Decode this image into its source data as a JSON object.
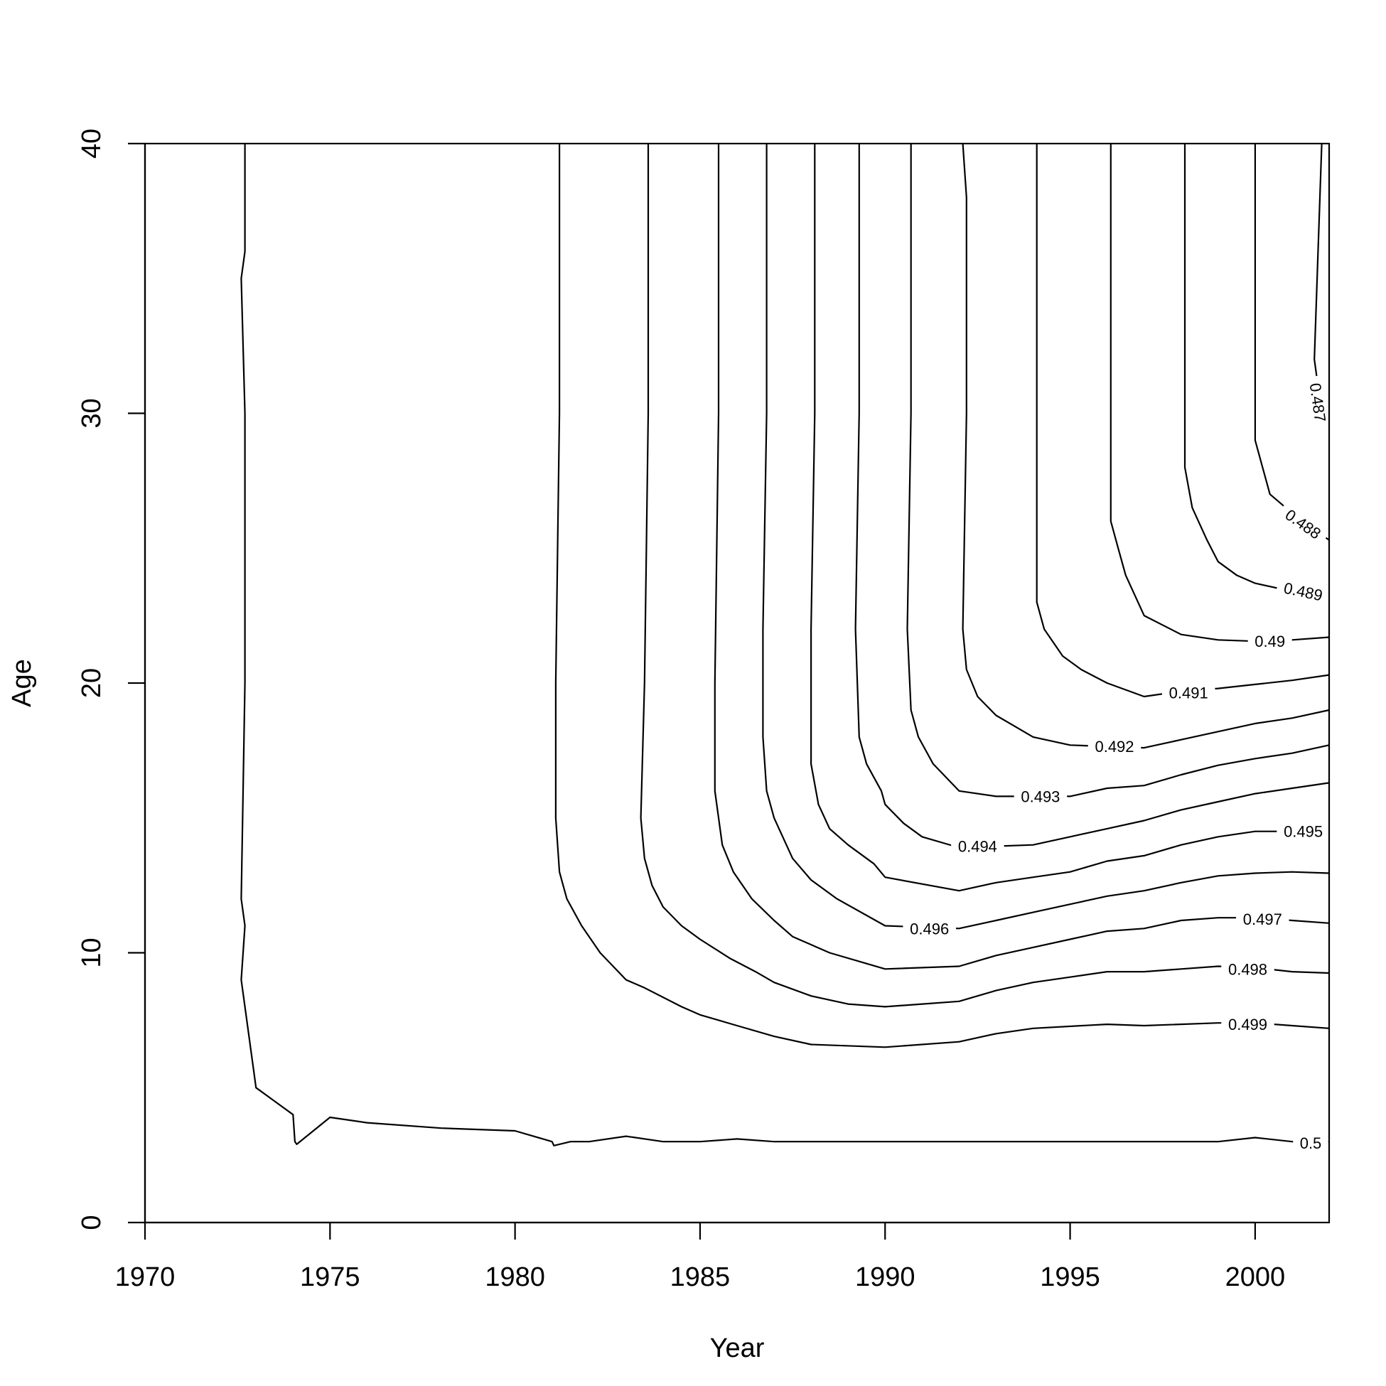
{
  "chart_data": {
    "type": "contour",
    "title": "",
    "xlabel": "Year",
    "ylabel": "Age",
    "xlim": [
      1970,
      2002
    ],
    "ylim": [
      0,
      40
    ],
    "xticks": [
      1970,
      1975,
      1980,
      1985,
      1990,
      1995,
      2000
    ],
    "yticks": [
      0,
      10,
      20,
      30,
      40
    ],
    "grid": false,
    "legend": "none",
    "contours": [
      {
        "level": "0.5",
        "points": [
          [
            1972.7,
            40
          ],
          [
            1972.7,
            36
          ],
          [
            1972.6,
            35
          ],
          [
            1972.7,
            30
          ],
          [
            1972.7,
            20
          ],
          [
            1972.6,
            12
          ],
          [
            1972.7,
            11
          ],
          [
            1972.6,
            9
          ],
          [
            1972.8,
            7
          ],
          [
            1973,
            5
          ],
          [
            1974,
            4
          ],
          [
            1974.05,
            3
          ],
          [
            1974.1,
            2.9
          ],
          [
            1975,
            3.9
          ],
          [
            1976,
            3.7
          ],
          [
            1978,
            3.5
          ],
          [
            1980,
            3.4
          ],
          [
            1981,
            3
          ],
          [
            1981.05,
            2.85
          ],
          [
            1981.5,
            3
          ],
          [
            1982,
            3
          ],
          [
            1983,
            3.2
          ],
          [
            1984,
            3
          ],
          [
            1985,
            3
          ],
          [
            1986,
            3.1
          ],
          [
            1987,
            3
          ],
          [
            1990,
            3
          ],
          [
            1995,
            3
          ],
          [
            1997,
            3
          ],
          [
            1999,
            3
          ],
          [
            2000,
            3.15
          ],
          [
            2001,
            3
          ],
          [
            2002,
            3
          ]
        ]
      },
      {
        "level": "0.499",
        "points": [
          [
            1981.2,
            40
          ],
          [
            1981.2,
            30
          ],
          [
            1981.1,
            20
          ],
          [
            1981.1,
            15
          ],
          [
            1981.2,
            13
          ],
          [
            1981.4,
            12
          ],
          [
            1981.8,
            11
          ],
          [
            1982.3,
            10
          ],
          [
            1983,
            9
          ],
          [
            1983.5,
            8.7
          ],
          [
            1984.5,
            8
          ],
          [
            1985,
            7.7
          ],
          [
            1986,
            7.3
          ],
          [
            1987,
            6.9
          ],
          [
            1988,
            6.6
          ],
          [
            1990,
            6.5
          ],
          [
            1992,
            6.7
          ],
          [
            1993,
            7
          ],
          [
            1994,
            7.2
          ],
          [
            1996,
            7.35
          ],
          [
            1997,
            7.3
          ],
          [
            1999,
            7.4
          ],
          [
            2000,
            7.4
          ],
          [
            2001,
            7.3
          ],
          [
            2002,
            7.2
          ]
        ]
      },
      {
        "level": "0.498",
        "points": [
          [
            1983.6,
            40
          ],
          [
            1983.6,
            30
          ],
          [
            1983.5,
            20
          ],
          [
            1983.4,
            15
          ],
          [
            1983.5,
            13.5
          ],
          [
            1983.7,
            12.5
          ],
          [
            1984,
            11.7
          ],
          [
            1984.5,
            11
          ],
          [
            1985,
            10.5
          ],
          [
            1985.8,
            9.8
          ],
          [
            1986.5,
            9.3
          ],
          [
            1987,
            8.9
          ],
          [
            1988,
            8.4
          ],
          [
            1989,
            8.1
          ],
          [
            1990,
            8
          ],
          [
            1991,
            8.1
          ],
          [
            1992,
            8.2
          ],
          [
            1993,
            8.6
          ],
          [
            1994,
            8.9
          ],
          [
            1995,
            9.1
          ],
          [
            1996,
            9.3
          ],
          [
            1997,
            9.3
          ],
          [
            1998,
            9.4
          ],
          [
            1999,
            9.5
          ],
          [
            2000,
            9.45
          ],
          [
            2001,
            9.3
          ],
          [
            2002,
            9.25
          ]
        ]
      },
      {
        "level": "0.497",
        "points": [
          [
            1985.5,
            40
          ],
          [
            1985.5,
            30
          ],
          [
            1985.4,
            20
          ],
          [
            1985.4,
            16
          ],
          [
            1985.6,
            14
          ],
          [
            1985.9,
            13
          ],
          [
            1986.4,
            12
          ],
          [
            1987,
            11.2
          ],
          [
            1987.5,
            10.6
          ],
          [
            1988.5,
            10
          ],
          [
            1989.5,
            9.6
          ],
          [
            1990,
            9.4
          ],
          [
            1992,
            9.5
          ],
          [
            1993,
            9.9
          ],
          [
            1994,
            10.2
          ],
          [
            1995,
            10.5
          ],
          [
            1996,
            10.8
          ],
          [
            1997,
            10.9
          ],
          [
            1998,
            11.2
          ],
          [
            1999,
            11.3
          ],
          [
            2000,
            11.3
          ],
          [
            2001,
            11.2
          ],
          [
            2002,
            11.1
          ]
        ]
      },
      {
        "level": "0.496",
        "points": [
          [
            1986.8,
            40
          ],
          [
            1986.8,
            30
          ],
          [
            1986.7,
            22
          ],
          [
            1986.7,
            18
          ],
          [
            1986.8,
            16
          ],
          [
            1987,
            15
          ],
          [
            1987.5,
            13.5
          ],
          [
            1988,
            12.7
          ],
          [
            1988.7,
            12
          ],
          [
            1990,
            11
          ],
          [
            1992,
            10.9
          ],
          [
            1993,
            11.2
          ],
          [
            1994,
            11.5
          ],
          [
            1995,
            11.8
          ],
          [
            1996,
            12.1
          ],
          [
            1997,
            12.3
          ],
          [
            1998,
            12.6
          ],
          [
            1999,
            12.85
          ],
          [
            2000,
            12.95
          ],
          [
            2001,
            13
          ],
          [
            2002,
            12.95
          ]
        ]
      },
      {
        "level": "0.495",
        "points": [
          [
            1988.1,
            40
          ],
          [
            1988.1,
            30
          ],
          [
            1988,
            22
          ],
          [
            1988,
            17
          ],
          [
            1988.2,
            15.5
          ],
          [
            1988.5,
            14.6
          ],
          [
            1989,
            14
          ],
          [
            1989.7,
            13.3
          ],
          [
            1990,
            12.8
          ],
          [
            1992,
            12.3
          ],
          [
            1993,
            12.6
          ],
          [
            1994,
            12.8
          ],
          [
            1995,
            13
          ],
          [
            1996,
            13.4
          ],
          [
            1997,
            13.6
          ],
          [
            1998,
            14
          ],
          [
            1999,
            14.3
          ],
          [
            2000,
            14.5
          ],
          [
            2001,
            14.5
          ],
          [
            2002,
            14.5
          ]
        ]
      },
      {
        "level": "0.494",
        "points": [
          [
            1989.3,
            40
          ],
          [
            1989.3,
            30
          ],
          [
            1989.2,
            22
          ],
          [
            1989.3,
            18
          ],
          [
            1989.5,
            17
          ],
          [
            1989.9,
            16
          ],
          [
            1990,
            15.5
          ],
          [
            1990.5,
            14.8
          ],
          [
            1991,
            14.3
          ],
          [
            1992,
            13.9
          ],
          [
            1994,
            14
          ],
          [
            1995,
            14.3
          ],
          [
            1996,
            14.6
          ],
          [
            1997,
            14.9
          ],
          [
            1998,
            15.3
          ],
          [
            1999,
            15.6
          ],
          [
            2000,
            15.9
          ],
          [
            2001,
            16.1
          ],
          [
            2002,
            16.3
          ]
        ]
      },
      {
        "level": "0.493",
        "points": [
          [
            1990.7,
            40
          ],
          [
            1990.7,
            30
          ],
          [
            1990.6,
            22
          ],
          [
            1990.7,
            19
          ],
          [
            1990.9,
            18
          ],
          [
            1991.3,
            17
          ],
          [
            1992,
            16
          ],
          [
            1993,
            15.8
          ],
          [
            1995,
            15.8
          ],
          [
            1996,
            16.1
          ],
          [
            1997,
            16.2
          ],
          [
            1998,
            16.6
          ],
          [
            1999,
            16.95
          ],
          [
            2000,
            17.2
          ],
          [
            2001,
            17.4
          ],
          [
            2002,
            17.7
          ]
        ]
      },
      {
        "level": "0.492",
        "points": [
          [
            1992.1,
            40
          ],
          [
            1992.2,
            38
          ],
          [
            1992.2,
            30
          ],
          [
            1992.1,
            22
          ],
          [
            1992.2,
            20.5
          ],
          [
            1992.5,
            19.5
          ],
          [
            1993,
            18.8
          ],
          [
            1994,
            18
          ],
          [
            1995,
            17.7
          ],
          [
            1997,
            17.6
          ],
          [
            1998,
            17.9
          ],
          [
            1999,
            18.2
          ],
          [
            2000,
            18.5
          ],
          [
            2001,
            18.7
          ],
          [
            2002,
            19
          ]
        ]
      },
      {
        "level": "0.491",
        "points": [
          [
            1994.1,
            40
          ],
          [
            1994.1,
            30
          ],
          [
            1994.1,
            23
          ],
          [
            1994.3,
            22
          ],
          [
            1994.8,
            21
          ],
          [
            1995.3,
            20.5
          ],
          [
            1996,
            20
          ],
          [
            1997,
            19.5
          ],
          [
            1998,
            19.7
          ],
          [
            1999,
            19.8
          ],
          [
            2000,
            19.95
          ],
          [
            2001,
            20.1
          ],
          [
            2002,
            20.3
          ]
        ]
      },
      {
        "level": "0.49",
        "points": [
          [
            1996.1,
            40
          ],
          [
            1996.1,
            30
          ],
          [
            1996.1,
            26
          ],
          [
            1996.3,
            25
          ],
          [
            1996.5,
            24
          ],
          [
            1997,
            22.5
          ],
          [
            1998,
            21.8
          ],
          [
            1999,
            21.6
          ],
          [
            2000,
            21.55
          ],
          [
            2001,
            21.6
          ],
          [
            2002,
            21.7
          ]
        ]
      },
      {
        "level": "0.489",
        "points": [
          [
            1998.1,
            40
          ],
          [
            1998.1,
            30
          ],
          [
            1998.1,
            28
          ],
          [
            1998.3,
            26.5
          ],
          [
            1998.7,
            25.3
          ],
          [
            1999,
            24.5
          ],
          [
            1999.5,
            24
          ],
          [
            2000,
            23.7
          ],
          [
            2001,
            23.4
          ],
          [
            2002,
            23.1
          ]
        ]
      },
      {
        "level": "0.488",
        "points": [
          [
            2000,
            40
          ],
          [
            2000,
            30
          ],
          [
            2000,
            29
          ],
          [
            2000.2,
            28
          ],
          [
            2000.4,
            27
          ],
          [
            2001,
            26.3
          ],
          [
            2002,
            25.3
          ]
        ]
      },
      {
        "level": "0.487",
        "points": [
          [
            2001.8,
            40
          ],
          [
            2001.7,
            36
          ],
          [
            2001.6,
            32
          ],
          [
            2001.7,
            31
          ],
          [
            2001.8,
            30
          ],
          [
            2002,
            29.5
          ]
        ]
      }
    ],
    "labels": [
      {
        "text": "0.5",
        "x": 2001.5,
        "y": 2.95,
        "angle": 0
      },
      {
        "text": "0.499",
        "x": 1999.8,
        "y": 7.35,
        "angle": 0
      },
      {
        "text": "0.498",
        "x": 1999.8,
        "y": 9.4,
        "angle": 0
      },
      {
        "text": "0.497",
        "x": 2000.2,
        "y": 11.25,
        "angle": 0
      },
      {
        "text": "0.496",
        "x": 1991.2,
        "y": 10.9,
        "angle": 0
      },
      {
        "text": "0.495",
        "x": 2001.3,
        "y": 14.5,
        "angle": 0
      },
      {
        "text": "0.494",
        "x": 1992.5,
        "y": 13.95,
        "angle": 0
      },
      {
        "text": "0.493",
        "x": 1994.2,
        "y": 15.8,
        "angle": 0
      },
      {
        "text": "0.492",
        "x": 1996.2,
        "y": 17.65,
        "angle": 0
      },
      {
        "text": "0.491",
        "x": 1998.2,
        "y": 19.65,
        "angle": 0
      },
      {
        "text": "0.49",
        "x": 2000.4,
        "y": 21.55,
        "angle": 0
      },
      {
        "text": "0.489",
        "x": 2001.3,
        "y": 23.4,
        "angle": 12
      },
      {
        "text": "0.488",
        "x": 2001.3,
        "y": 25.9,
        "angle": 35
      },
      {
        "text": "0.487",
        "x": 2001.7,
        "y": 30.4,
        "angle": 82
      }
    ]
  }
}
